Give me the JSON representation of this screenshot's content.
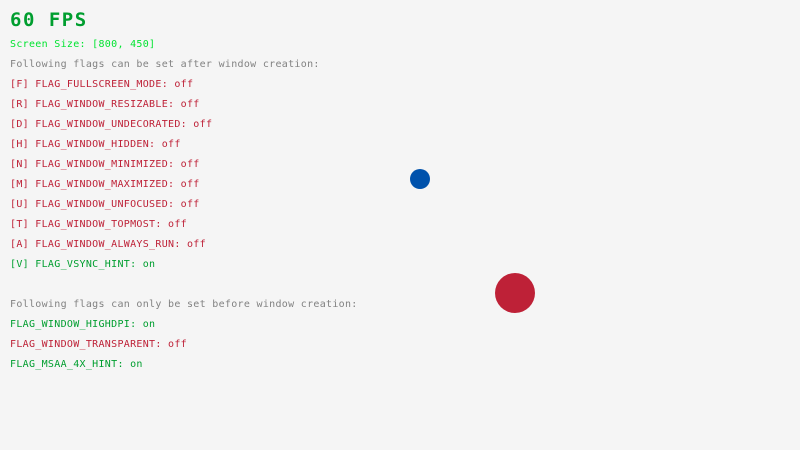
{
  "fps": "60 FPS",
  "screen_size": "Screen Size: [800, 450]",
  "after_header": "Following flags can be set after window creation:",
  "after_flags": [
    {
      "label": "[F] FLAG_FULLSCREEN_MODE: ",
      "state": "off"
    },
    {
      "label": "[R] FLAG_WINDOW_RESIZABLE: ",
      "state": "off"
    },
    {
      "label": "[D] FLAG_WINDOW_UNDECORATED: ",
      "state": "off"
    },
    {
      "label": "[H] FLAG_WINDOW_HIDDEN: ",
      "state": "off"
    },
    {
      "label": "[N] FLAG_WINDOW_MINIMIZED: ",
      "state": "off"
    },
    {
      "label": "[M] FLAG_WINDOW_MAXIMIZED: ",
      "state": "off"
    },
    {
      "label": "[U] FLAG_WINDOW_UNFOCUSED: ",
      "state": "off"
    },
    {
      "label": "[T] FLAG_WINDOW_TOPMOST: ",
      "state": "off"
    },
    {
      "label": "[A] FLAG_WINDOW_ALWAYS_RUN: ",
      "state": "off"
    },
    {
      "label": "[V] FLAG_VSYNC_HINT: ",
      "state": "on"
    }
  ],
  "before_header": "Following flags can only be set before window creation:",
  "before_flags": [
    {
      "label": "FLAG_WINDOW_HIGHDPI: ",
      "state": "on"
    },
    {
      "label": "FLAG_WINDOW_TRANSPARENT: ",
      "state": "off"
    },
    {
      "label": "FLAG_MSAA_4X_HINT: ",
      "state": "on"
    }
  ],
  "colors": {
    "background": "#f5f5f5",
    "fps": "#009e2f",
    "screen_size": "#00e430",
    "header": "#828282",
    "on": "#009e2f",
    "off": "#be2137",
    "blue_ball": "#0052ac",
    "red_ball": "#be2137"
  }
}
